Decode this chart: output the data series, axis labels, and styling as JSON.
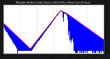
{
  "title": "Milwaukee Weather Outdoor Temp (vs) Wind Chill per Minute (Last 24 Hours)",
  "bar_color": "#0000ff",
  "line_color": "#ff0000",
  "outer_bg": "#181818",
  "plot_bg": "#ffffff",
  "spine_color": "#888888",
  "grid_color": "#aaaaaa",
  "title_color": "#ffffff",
  "tick_color": "#000000",
  "ylim_min": -14,
  "ylim_max": 56,
  "ytick_values": [
    55,
    50,
    45,
    40,
    35,
    30,
    25,
    20,
    15,
    10,
    5,
    0,
    -5,
    -10
  ],
  "ytick_labels": [
    "55",
    "50",
    "45",
    "40",
    "35",
    "30",
    "25",
    "20",
    "15",
    "10",
    "5",
    "0",
    "-5",
    "-10"
  ],
  "vline_positions": [
    0.1667,
    0.3333,
    0.5,
    0.6667,
    0.8333
  ],
  "n_bars": 120
}
